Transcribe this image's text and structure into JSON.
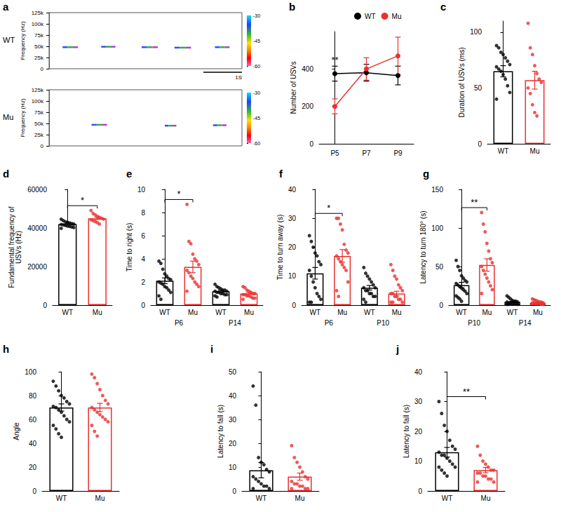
{
  "chart_data": [
    {
      "type": "spectrogram",
      "panel": "a",
      "name": "WT",
      "y_label": "Frequency (Hz)",
      "xlim": [
        0,
        5
      ],
      "ylim": [
        0,
        125000
      ],
      "yticks": [
        0,
        {
          "value": 25000,
          "label": "25k"
        },
        {
          "value": 50000,
          "label": "50k"
        },
        {
          "value": 75000,
          "label": "75k"
        },
        {
          "value": 100000,
          "label": "100k"
        },
        {
          "value": 125000,
          "label": "125k"
        }
      ],
      "tick_labels": "y",
      "grid": false,
      "calls": [
        [
          0.35,
          0.75,
          48000
        ],
        [
          1.35,
          1.72,
          49000
        ],
        [
          2.4,
          2.82,
          48000
        ],
        [
          3.25,
          3.68,
          47000
        ],
        [
          4.3,
          4.68,
          48000
        ]
      ],
      "colorbar": {
        "range": [
          -60,
          -30
        ],
        "ticks": [
          -30,
          -45,
          -60
        ]
      },
      "scale_bar": {
        "length": 1,
        "label": "1S"
      }
    },
    {
      "type": "spectrogram",
      "name": "Mu",
      "y_label": "Frequency (Hz)",
      "xlim": [
        0,
        5
      ],
      "ylim": [
        0,
        125000
      ],
      "yticks": [
        0,
        {
          "value": 25000,
          "label": "25k"
        },
        {
          "value": 50000,
          "label": "50k"
        },
        {
          "value": 75000,
          "label": "75k"
        },
        {
          "value": 100000,
          "label": "100k"
        },
        {
          "value": 125000,
          "label": "125k"
        }
      ],
      "tick_labels": "y",
      "grid": false,
      "calls": [
        [
          1.1,
          1.5,
          47000
        ],
        [
          3.0,
          3.3,
          45000
        ],
        [
          4.25,
          4.6,
          46000
        ]
      ],
      "colorbar": {
        "range": [
          -60,
          -30
        ],
        "ticks": [
          -30,
          -45,
          -60
        ]
      }
    },
    {
      "type": "line",
      "panel": "b",
      "y_label": "Number of USVs",
      "categories": [
        "P5",
        "P7",
        "P9"
      ],
      "series": [
        {
          "name": "WT",
          "color": "#000000",
          "values": [
            375,
            380,
            365
          ],
          "errors": [
            40,
            45,
            50
          ]
        },
        {
          "name": "Mu",
          "color": "#e8312f",
          "values": [
            200,
            400,
            470
          ],
          "errors": [
            40,
            60,
            100
          ]
        }
      ],
      "ylim": [
        0,
        600
      ],
      "yticks": [
        0,
        200,
        400
      ],
      "legend": "top-right",
      "marker": "circle",
      "grid": false,
      "annotations": [
        {
          "text": "**",
          "at": 0
        }
      ]
    },
    {
      "type": "bar",
      "panel": "c",
      "y_label": "Duration of USVs (ms)",
      "categories": [
        "WT",
        "Mu"
      ],
      "colors": [
        "#000000",
        "#e8312f"
      ],
      "values": [
        65,
        57
      ],
      "errors": [
        5,
        8
      ],
      "points": [
        [
          88,
          86,
          82,
          80,
          77,
          74,
          71,
          69,
          67,
          65,
          62,
          58,
          52,
          46,
          40
        ],
        [
          108,
          86,
          80,
          70,
          63,
          58,
          55,
          50,
          45,
          35,
          28,
          25
        ]
      ],
      "ylim": [
        0,
        110
      ],
      "yticks": [
        0,
        50,
        100
      ],
      "grid": false
    },
    {
      "type": "bar",
      "panel": "d",
      "y_label": "Fundamental frequency of USVs (Hz)",
      "categories": [
        "WT",
        "Mu"
      ],
      "colors": [
        "#000000",
        "#e8312f"
      ],
      "values": [
        42000,
        45000
      ],
      "errors": [
        400,
        600
      ],
      "points": [
        [
          44500,
          43800,
          43200,
          42900,
          42600,
          42300,
          42000,
          41800,
          41600,
          41300,
          41000,
          40800,
          40500,
          40200,
          39800
        ],
        [
          49000,
          47500,
          46800,
          46000,
          45500,
          45000,
          44600,
          44200,
          43800,
          43300,
          42800,
          42000
        ]
      ],
      "ylim": [
        0,
        60000
      ],
      "yticks": [
        0,
        20000,
        40000,
        60000
      ],
      "grid": false,
      "annotations": [
        {
          "text": "*",
          "from": 0,
          "to": 1
        }
      ]
    },
    {
      "type": "bar",
      "panel": "e",
      "y_label": "Time to right (s)",
      "categories": [
        "WT",
        "Mu",
        "WT",
        "Mu"
      ],
      "groups": [
        "P6",
        "P14"
      ],
      "colors": [
        "#000000",
        "#e8312f",
        "#000000",
        "#e8312f"
      ],
      "values": [
        2.1,
        3.3,
        1.2,
        1.0
      ],
      "errors": [
        0.25,
        0.5,
        0.08,
        0.08
      ],
      "points": [
        [
          3.8,
          3.6,
          3.1,
          2.7,
          2.5,
          2.3,
          2.2,
          2.0,
          1.9,
          1.8,
          1.6,
          1.5,
          1.3,
          1.1,
          0.8,
          0.5
        ],
        [
          8.7,
          5.5,
          5.3,
          4.4,
          4.0,
          3.8,
          3.5,
          3.0,
          2.8,
          2.5,
          2.3,
          2.0,
          1.8,
          1.6,
          1.2
        ],
        [
          1.8,
          1.6,
          1.5,
          1.4,
          1.3,
          1.3,
          1.2,
          1.2,
          1.1,
          1.1,
          1.0,
          1.0,
          0.9,
          0.9,
          0.8,
          0.7
        ],
        [
          1.6,
          1.5,
          1.3,
          1.2,
          1.1,
          1.0,
          1.0,
          0.9,
          0.9,
          0.8,
          0.8,
          0.7,
          0.6,
          0.6,
          0.5
        ]
      ],
      "ylim": [
        0,
        10
      ],
      "yticks": [
        0,
        2,
        4,
        6,
        8,
        10
      ],
      "grid": false,
      "annotations": [
        {
          "text": "*",
          "from": 0,
          "to": 1
        }
      ]
    },
    {
      "type": "bar",
      "panel": "f",
      "y_label": "Time to turn away (s)",
      "categories": [
        "WT",
        "Mu",
        "WT",
        "Mu"
      ],
      "groups": [
        "P6",
        "P10"
      ],
      "colors": [
        "#000000",
        "#e8312f",
        "#000000",
        "#e8312f"
      ],
      "values": [
        11,
        17,
        6,
        4
      ],
      "errors": [
        2,
        2.2,
        0.8,
        0.8
      ],
      "points": [
        [
          24,
          22,
          20,
          18,
          17,
          15,
          14,
          12,
          10,
          8,
          6,
          4,
          3,
          2,
          1,
          1
        ],
        [
          30,
          30,
          28,
          26,
          21,
          19,
          18,
          17,
          16,
          15,
          14,
          13,
          12,
          8,
          5,
          3
        ],
        [
          13,
          11,
          10,
          9,
          8,
          7,
          6,
          6,
          5,
          5,
          4,
          4,
          3,
          3,
          2,
          1
        ],
        [
          14,
          12,
          10,
          9,
          7,
          6,
          5,
          4,
          4,
          3,
          3,
          2,
          2,
          1,
          1,
          1
        ]
      ],
      "ylim": [
        0,
        40
      ],
      "yticks": [
        0,
        10,
        20,
        30,
        40
      ],
      "grid": false,
      "annotations": [
        {
          "text": "*",
          "from": 0,
          "to": 1
        }
      ]
    },
    {
      "type": "bar",
      "panel": "g",
      "y_label": "Latency to turn 180° (s)",
      "categories": [
        "WT",
        "Mu",
        "WT",
        "Mu"
      ],
      "groups": [
        "P10",
        "P14"
      ],
      "colors": [
        "#000000",
        "#e8312f",
        "#000000",
        "#e8312f"
      ],
      "values": [
        26,
        52,
        4,
        3
      ],
      "errors": [
        3.5,
        8,
        0.8,
        0.5
      ],
      "points": [
        [
          58,
          50,
          45,
          38,
          35,
          32,
          30,
          28,
          26,
          24,
          22,
          20,
          18,
          15,
          12,
          10,
          8,
          5
        ],
        [
          120,
          105,
          95,
          80,
          70,
          60,
          55,
          50,
          45,
          40,
          35,
          30,
          25,
          20,
          15
        ],
        [
          12,
          10,
          8,
          6,
          5,
          5,
          4,
          4,
          3,
          3,
          2,
          2,
          2,
          1,
          1,
          1
        ],
        [
          8,
          7,
          6,
          5,
          4,
          4,
          3,
          3,
          3,
          2,
          2,
          2,
          1,
          1
        ]
      ],
      "ylim": [
        0,
        150
      ],
      "yticks": [
        0,
        50,
        100,
        150
      ],
      "grid": false,
      "annotations": [
        {
          "text": "**",
          "from": 0,
          "to": 1
        }
      ]
    },
    {
      "type": "bar",
      "panel": "h",
      "y_label": "Angle",
      "categories": [
        "WT",
        "Mu"
      ],
      "colors": [
        "#000000",
        "#e8312f"
      ],
      "values": [
        70,
        70
      ],
      "errors": [
        3,
        3.5
      ],
      "points": [
        [
          92,
          88,
          84,
          80,
          78,
          75,
          73,
          71,
          70,
          68,
          66,
          63,
          60,
          58,
          55,
          52,
          48,
          45
        ],
        [
          98,
          95,
          90,
          85,
          80,
          76,
          73,
          70,
          68,
          66,
          64,
          62,
          60,
          58,
          55,
          50,
          46
        ]
      ],
      "ylim": [
        0,
        100
      ],
      "yticks": [
        0,
        20,
        40,
        60,
        80,
        100
      ],
      "grid": false
    },
    {
      "type": "bar",
      "panel": "i",
      "y_label": "Latency to fall (s)",
      "categories": [
        "WT",
        "Mu"
      ],
      "colors": [
        "#000000",
        "#e8312f"
      ],
      "values": [
        8.7,
        6
      ],
      "errors": [
        3.2,
        1.5
      ],
      "points": [
        [
          44,
          36,
          14,
          12,
          11,
          9,
          8,
          6,
          5,
          4,
          3,
          2,
          2,
          1,
          1
        ],
        [
          19,
          14,
          12,
          10,
          8,
          6,
          5,
          4,
          3,
          3,
          2,
          2,
          1,
          1,
          1
        ]
      ],
      "ylim": [
        0,
        50
      ],
      "yticks": [
        0,
        10,
        20,
        30,
        40,
        50
      ],
      "grid": false
    },
    {
      "type": "bar",
      "panel": "j",
      "y_label": "Latency to fall (s)",
      "categories": [
        "WT",
        "Mu"
      ],
      "colors": [
        "#000000",
        "#e8312f"
      ],
      "values": [
        13,
        7
      ],
      "errors": [
        1.6,
        0.9
      ],
      "points": [
        [
          30,
          26,
          22,
          20,
          17,
          15,
          14,
          13,
          12,
          12,
          11,
          10,
          9,
          8,
          8,
          7,
          6,
          5
        ],
        [
          15,
          12,
          10,
          9,
          8,
          7,
          7,
          6,
          6,
          5,
          5,
          4,
          4,
          3,
          3
        ]
      ],
      "ylim": [
        0,
        40
      ],
      "yticks": [
        0,
        10,
        20,
        30,
        40
      ],
      "grid": false,
      "annotations": [
        {
          "text": "**",
          "from": 0,
          "to": 1
        }
      ]
    }
  ]
}
